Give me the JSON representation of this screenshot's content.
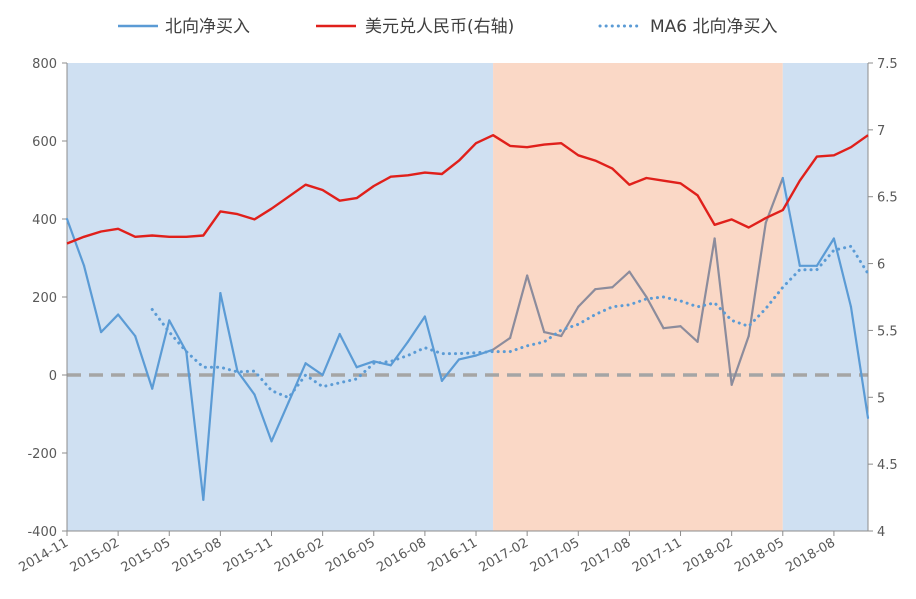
{
  "chart_data": {
    "type": "line",
    "title": "",
    "legend": {
      "placement": "top",
      "entries": [
        {
          "label": "北向净买入",
          "style": "solid",
          "color": "#5B9BD5"
        },
        {
          "label": "美元兑人民币(右轴)",
          "style": "solid",
          "color": "#E0201B"
        },
        {
          "label": "MA6 北向净买入",
          "style": "dotted",
          "color": "#5B9BD5"
        }
      ]
    },
    "x_ticks": [
      "2014-11",
      "2015-02",
      "2015-05",
      "2015-08",
      "2015-11",
      "2016-02",
      "2016-05",
      "2016-08",
      "2016-11",
      "2017-02",
      "2017-05",
      "2017-08",
      "2017-11",
      "2018-02",
      "2018-05",
      "2018-08"
    ],
    "x_range": [
      "2014-11",
      "2018-10"
    ],
    "y_left": {
      "min": -400,
      "max": 800,
      "ticks": [
        "800",
        "600",
        "400",
        "200",
        "0",
        "-200",
        "-400"
      ]
    },
    "y_right": {
      "min": 4,
      "max": 7.5,
      "ticks": [
        "7.5",
        "7",
        "6.5",
        "6",
        "5.5",
        "5",
        "4.5",
        "4"
      ]
    },
    "shaded_periods": [
      {
        "start": "2014-11",
        "end": "2016-12",
        "color": "#CFE0F2"
      },
      {
        "start": "2016-12",
        "end": "2018-05",
        "color": "#FAD8C6"
      },
      {
        "start": "2018-05",
        "end": "2018-10",
        "color": "#CFE0F2"
      }
    ],
    "reference_line": {
      "y": 0,
      "style": "dashed",
      "color": "#A5A5A5"
    },
    "series": [
      {
        "name": "北向净买入",
        "axis": "left",
        "color": "#5B9BD5",
        "color_in_orange_period": "#8C8C9C",
        "x": [
          "2014-11",
          "2014-12",
          "2015-01",
          "2015-02",
          "2015-03",
          "2015-04",
          "2015-05",
          "2015-06",
          "2015-07",
          "2015-08",
          "2015-09",
          "2015-10",
          "2015-11",
          "2015-12",
          "2016-01",
          "2016-02",
          "2016-03",
          "2016-04",
          "2016-05",
          "2016-06",
          "2016-07",
          "2016-08",
          "2016-09",
          "2016-10",
          "2016-11",
          "2016-12",
          "2017-01",
          "2017-02",
          "2017-03",
          "2017-04",
          "2017-05",
          "2017-06",
          "2017-07",
          "2017-08",
          "2017-09",
          "2017-10",
          "2017-11",
          "2017-12",
          "2018-01",
          "2018-02",
          "2018-03",
          "2018-04",
          "2018-05",
          "2018-06",
          "2018-07",
          "2018-08",
          "2018-09",
          "2018-10"
        ],
        "values": [
          400,
          280,
          110,
          155,
          100,
          -35,
          140,
          60,
          -320,
          210,
          10,
          -50,
          -170,
          -70,
          30,
          0,
          105,
          20,
          35,
          25,
          85,
          150,
          -15,
          40,
          50,
          65,
          95,
          255,
          110,
          100,
          175,
          220,
          225,
          265,
          200,
          120,
          125,
          85,
          350,
          -25,
          100,
          390,
          505,
          280,
          280,
          350,
          175,
          -110
        ]
      },
      {
        "name": "美元兑人民币(右轴)",
        "axis": "right",
        "color": "#E0201B",
        "x": [
          "2014-11",
          "2014-12",
          "2015-01",
          "2015-02",
          "2015-03",
          "2015-04",
          "2015-05",
          "2015-06",
          "2015-07",
          "2015-08",
          "2015-09",
          "2015-10",
          "2015-11",
          "2015-12",
          "2016-01",
          "2016-02",
          "2016-03",
          "2016-04",
          "2016-05",
          "2016-06",
          "2016-07",
          "2016-08",
          "2016-09",
          "2016-10",
          "2016-11",
          "2016-12",
          "2017-01",
          "2017-02",
          "2017-03",
          "2017-04",
          "2017-05",
          "2017-06",
          "2017-07",
          "2017-08",
          "2017-09",
          "2017-10",
          "2017-11",
          "2017-12",
          "2018-01",
          "2018-02",
          "2018-03",
          "2018-04",
          "2018-05",
          "2018-06",
          "2018-07",
          "2018-08",
          "2018-09",
          "2018-10"
        ],
        "values": [
          6.15,
          6.2,
          6.24,
          6.26,
          6.2,
          6.21,
          6.2,
          6.2,
          6.21,
          6.39,
          6.37,
          6.33,
          6.41,
          6.5,
          6.59,
          6.55,
          6.47,
          6.49,
          6.58,
          6.65,
          6.66,
          6.68,
          6.67,
          6.77,
          6.9,
          6.96,
          6.88,
          6.87,
          6.89,
          6.9,
          6.81,
          6.77,
          6.71,
          6.59,
          6.64,
          6.62,
          6.6,
          6.51,
          6.29,
          6.33,
          6.27,
          6.34,
          6.4,
          6.62,
          6.8,
          6.81,
          6.87,
          6.96
        ]
      },
      {
        "name": "MA6 北向净买入",
        "axis": "left",
        "color": "#5B9BD5",
        "style": "dotted",
        "x": [
          "2015-04",
          "2015-05",
          "2015-06",
          "2015-07",
          "2015-08",
          "2015-09",
          "2015-10",
          "2015-11",
          "2015-12",
          "2016-01",
          "2016-02",
          "2016-03",
          "2016-04",
          "2016-05",
          "2016-06",
          "2016-07",
          "2016-08",
          "2016-09",
          "2016-10",
          "2016-11",
          "2016-12",
          "2017-01",
          "2017-02",
          "2017-03",
          "2017-04",
          "2017-05",
          "2017-06",
          "2017-07",
          "2017-08",
          "2017-09",
          "2017-10",
          "2017-11",
          "2017-12",
          "2018-01",
          "2018-02",
          "2018-03",
          "2018-04",
          "2018-05",
          "2018-06",
          "2018-07",
          "2018-08",
          "2018-09",
          "2018-10"
        ],
        "values": [
          168,
          110,
          60,
          20,
          20,
          8,
          10,
          -40,
          -58,
          0,
          -30,
          -20,
          -10,
          30,
          35,
          50,
          70,
          55,
          55,
          57,
          60,
          60,
          75,
          85,
          115,
          130,
          155,
          175,
          180,
          195,
          200,
          190,
          175,
          185,
          140,
          125,
          170,
          225,
          270,
          270,
          320,
          330,
          260
        ]
      }
    ]
  }
}
